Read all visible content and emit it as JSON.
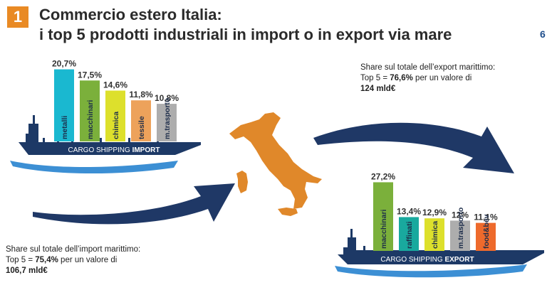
{
  "header": {
    "number": "1",
    "title_line1": "Commercio estero Italia:",
    "title_line2": "i top 5 prodotti industriali in import o in export via mare",
    "page_number": "6"
  },
  "import_note": {
    "line1": "Share sul totale dell’import marittimo:",
    "line2_prefix": "Top 5 = ",
    "line2_share": "75,4%",
    "line2_suffix": " per un valore di",
    "line3": "106,7 mld€"
  },
  "export_note": {
    "line1": "Share sul totale dell’export marittimo:",
    "line2_prefix": "Top 5 = ",
    "line2_share": "76,6%",
    "line2_suffix": " per un valore di",
    "line3": "124 mld€"
  },
  "colors": {
    "ship": "#1d3966",
    "arrow": "#1f3866",
    "italy": "#e0882a",
    "wave": "#3c8fd4",
    "badge": "#e98a24"
  },
  "chart_data": [
    {
      "type": "bar",
      "ship_label_prefix": "CARGO SHIPPING ",
      "ship_label_bold": "IMPORT",
      "categories": [
        "metalli",
        "macchinari",
        "chimica",
        "tessile",
        "m.trasporto"
      ],
      "value_labels": [
        "20,7%",
        "17,5%",
        "14,6%",
        "11,8%",
        "10,8%"
      ],
      "values": [
        20.7,
        17.5,
        14.6,
        11.8,
        10.8
      ],
      "colors": [
        "#1ab8d0",
        "#7bb03b",
        "#dde02c",
        "#eda25b",
        "#adadad"
      ]
    },
    {
      "type": "bar",
      "ship_label_prefix": "CARGO SHIPPING ",
      "ship_label_bold": "EXPORT",
      "categories": [
        "macchinari",
        "raffinati",
        "chimica",
        "m.trasporto",
        "food&bev"
      ],
      "value_labels": [
        "27,2%",
        "13,4%",
        "12,9%",
        "12%",
        "11,1%"
      ],
      "values": [
        27.2,
        13.4,
        12.9,
        12.0,
        11.1
      ],
      "colors": [
        "#7bb03b",
        "#19a99e",
        "#dde02c",
        "#adadad",
        "#ee6a2c"
      ]
    }
  ]
}
